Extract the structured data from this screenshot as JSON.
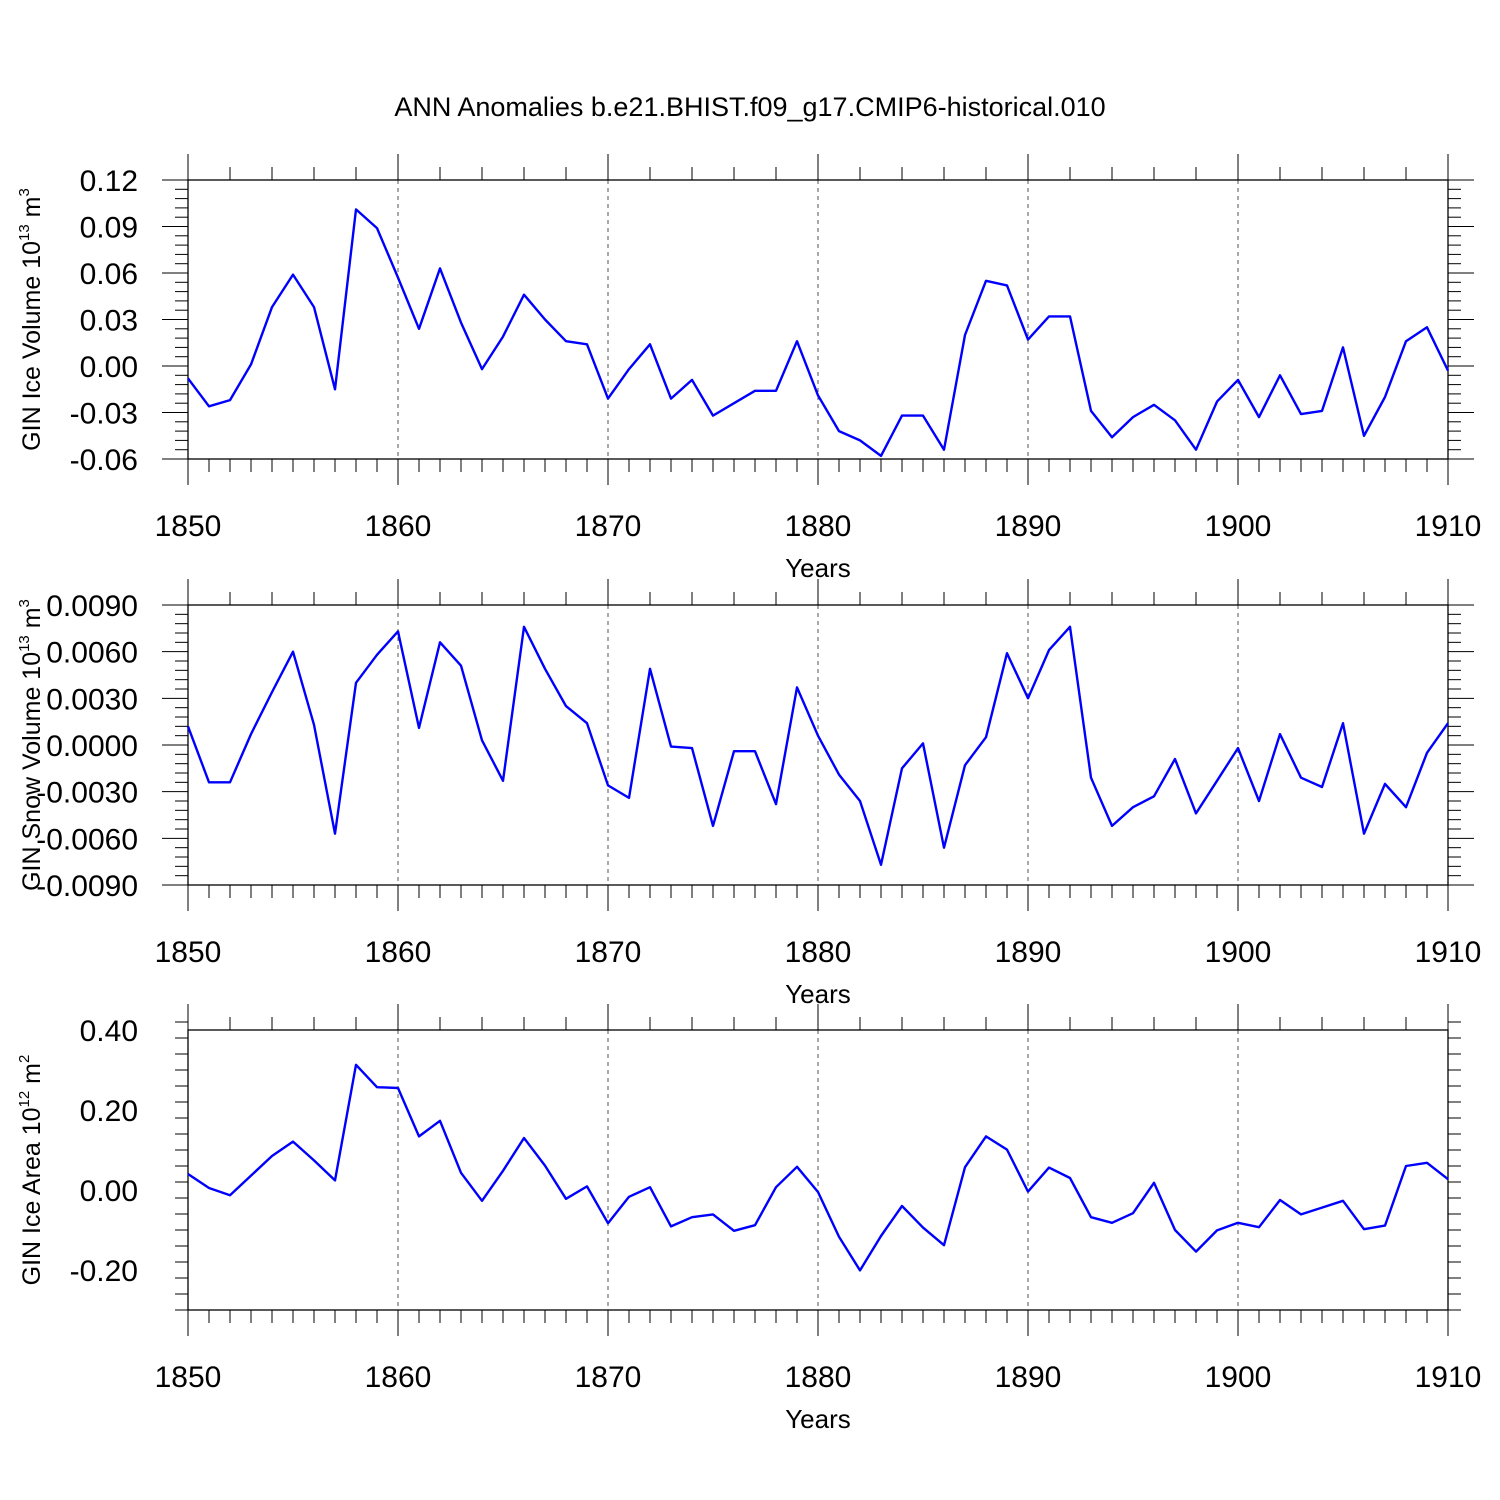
{
  "title": "ANN Anomalies b.e21.BHIST.f09_g17.CMIP6-historical.010",
  "colors": {
    "line": "#0000ff",
    "axis": "#000000",
    "grid": "#555555"
  },
  "chart_data": [
    {
      "type": "line",
      "ylabel": {
        "text": "GIN Ice Volume 10",
        "exponent": "13",
        "unit": " m",
        "unit_exponent": "3"
      },
      "xlabel": "Years",
      "xlim": [
        1850,
        1910
      ],
      "ylim": [
        -0.06,
        0.12
      ],
      "x_ticks": [
        "1850",
        "1860",
        "1870",
        "1880",
        "1890",
        "1900",
        "1910"
      ],
      "y_ticks": [
        "0.12",
        "0.09",
        "0.06",
        "0.03",
        "0.00",
        "-0.03",
        "-0.06"
      ],
      "y_tick_values": [
        0.12,
        0.09,
        0.06,
        0.03,
        0.0,
        -0.03,
        -0.06
      ],
      "series": [
        {
          "x": [
            1850,
            1851,
            1852,
            1853,
            1854,
            1855,
            1856,
            1857,
            1858,
            1859,
            1860,
            1861,
            1862,
            1863,
            1864,
            1865,
            1866,
            1867,
            1868,
            1869,
            1870,
            1871,
            1872,
            1873,
            1874,
            1875,
            1876,
            1877,
            1878,
            1879,
            1880,
            1881,
            1882,
            1883,
            1884,
            1885,
            1886,
            1887,
            1888,
            1889,
            1890,
            1891,
            1892,
            1893,
            1894,
            1895,
            1896,
            1897,
            1898,
            1899,
            1900,
            1901,
            1902,
            1903,
            1904,
            1905,
            1906,
            1907,
            1908,
            1909,
            1910
          ],
          "values": [
            -0.008,
            -0.026,
            -0.022,
            0.001,
            0.038,
            0.059,
            0.038,
            -0.015,
            0.101,
            0.089,
            0.057,
            0.024,
            0.063,
            0.028,
            -0.002,
            0.019,
            0.046,
            0.03,
            0.016,
            0.014,
            -0.021,
            -0.002,
            0.014,
            -0.021,
            -0.009,
            -0.032,
            -0.024,
            -0.016,
            -0.016,
            0.016,
            -0.019,
            -0.042,
            -0.048,
            -0.058,
            -0.032,
            -0.032,
            -0.054,
            0.02,
            0.055,
            0.052,
            0.017,
            0.032,
            0.032,
            -0.029,
            -0.046,
            -0.033,
            -0.025,
            -0.035,
            -0.054,
            -0.023,
            -0.009,
            -0.033,
            -0.006,
            -0.031,
            -0.029,
            0.012,
            -0.045,
            -0.02,
            0.016,
            0.025,
            -0.003
          ]
        }
      ]
    },
    {
      "type": "line",
      "ylabel": {
        "text": "GIN Snow Volume 10",
        "exponent": "13",
        "unit": " m",
        "unit_exponent": "3"
      },
      "xlabel": "Years",
      "xlim": [
        1850,
        1910
      ],
      "ylim": [
        -0.009,
        0.009
      ],
      "x_ticks": [
        "1850",
        "1860",
        "1870",
        "1880",
        "1890",
        "1900",
        "1910"
      ],
      "y_ticks": [
        "0.0090",
        "0.0060",
        "0.0030",
        "0.0000",
        "-0.0030",
        "-0.0060",
        "-0.0090"
      ],
      "y_tick_values": [
        0.009,
        0.006,
        0.003,
        0.0,
        -0.003,
        -0.006,
        -0.009
      ],
      "series": [
        {
          "x": [
            1850,
            1851,
            1852,
            1853,
            1854,
            1855,
            1856,
            1857,
            1858,
            1859,
            1860,
            1861,
            1862,
            1863,
            1864,
            1865,
            1866,
            1867,
            1868,
            1869,
            1870,
            1871,
            1872,
            1873,
            1874,
            1875,
            1876,
            1877,
            1878,
            1879,
            1880,
            1881,
            1882,
            1883,
            1884,
            1885,
            1886,
            1887,
            1888,
            1889,
            1890,
            1891,
            1892,
            1893,
            1894,
            1895,
            1896,
            1897,
            1898,
            1899,
            1900,
            1901,
            1902,
            1903,
            1904,
            1905,
            1906,
            1907,
            1908,
            1909,
            1910
          ],
          "values": [
            0.0012,
            -0.0024,
            -0.0024,
            0.0007,
            0.0034,
            0.006,
            0.0013,
            -0.0057,
            0.004,
            0.0058,
            0.0073,
            0.0011,
            0.0066,
            0.0051,
            0.0003,
            -0.0023,
            0.0076,
            0.0049,
            0.0025,
            0.0014,
            -0.0026,
            -0.0034,
            0.0049,
            -0.0001,
            -0.0002,
            -0.0052,
            -0.0004,
            -0.0004,
            -0.0038,
            0.0037,
            0.0006,
            -0.0019,
            -0.0036,
            -0.0077,
            -0.0015,
            0.0001,
            -0.0066,
            -0.0013,
            0.0005,
            0.0059,
            0.003,
            0.0061,
            0.0076,
            -0.0021,
            -0.0052,
            -0.004,
            -0.0033,
            -0.0009,
            -0.0044,
            -0.0023,
            -0.0002,
            -0.0036,
            0.0007,
            -0.0021,
            -0.0027,
            0.0014,
            -0.0057,
            -0.0025,
            -0.004,
            -0.0005,
            0.0014
          ]
        }
      ]
    },
    {
      "type": "line",
      "ylabel": {
        "text": "GIN Ice Area 10",
        "exponent": "12",
        "unit": " m",
        "unit_exponent": "2"
      },
      "xlabel": "Years",
      "xlim": [
        1850,
        1910
      ],
      "ylim": [
        -0.3,
        0.4
      ],
      "x_ticks": [
        "1850",
        "1860",
        "1870",
        "1880",
        "1890",
        "1900",
        "1910"
      ],
      "y_ticks": [
        "0.40",
        "0.20",
        "0.00",
        "-0.20"
      ],
      "y_tick_values": [
        0.4,
        0.2,
        0.0,
        -0.2
      ],
      "series": [
        {
          "x": [
            1850,
            1851,
            1852,
            1853,
            1854,
            1855,
            1856,
            1857,
            1858,
            1859,
            1860,
            1861,
            1862,
            1863,
            1864,
            1865,
            1866,
            1867,
            1868,
            1869,
            1870,
            1871,
            1872,
            1873,
            1874,
            1875,
            1876,
            1877,
            1878,
            1879,
            1880,
            1881,
            1882,
            1883,
            1884,
            1885,
            1886,
            1887,
            1888,
            1889,
            1890,
            1891,
            1892,
            1893,
            1894,
            1895,
            1896,
            1897,
            1898,
            1899,
            1900,
            1901,
            1902,
            1903,
            1904,
            1905,
            1906,
            1907,
            1908,
            1909,
            1910
          ],
          "values": [
            0.04,
            0.005,
            -0.013,
            0.036,
            0.085,
            0.121,
            0.074,
            0.024,
            0.313,
            0.257,
            0.255,
            0.134,
            0.173,
            0.043,
            -0.027,
            0.048,
            0.13,
            0.061,
            -0.022,
            0.009,
            -0.083,
            -0.017,
            0.007,
            -0.091,
            -0.068,
            -0.061,
            -0.102,
            -0.088,
            0.007,
            0.058,
            -0.005,
            -0.117,
            -0.201,
            -0.115,
            -0.04,
            -0.094,
            -0.138,
            0.057,
            0.134,
            0.101,
            -0.004,
            0.056,
            0.03,
            -0.068,
            -0.082,
            -0.058,
            0.018,
            -0.1,
            -0.154,
            -0.101,
            -0.082,
            -0.093,
            -0.025,
            -0.061,
            -0.044,
            -0.027,
            -0.098,
            -0.089,
            0.06,
            0.068,
            0.027
          ]
        }
      ]
    }
  ]
}
